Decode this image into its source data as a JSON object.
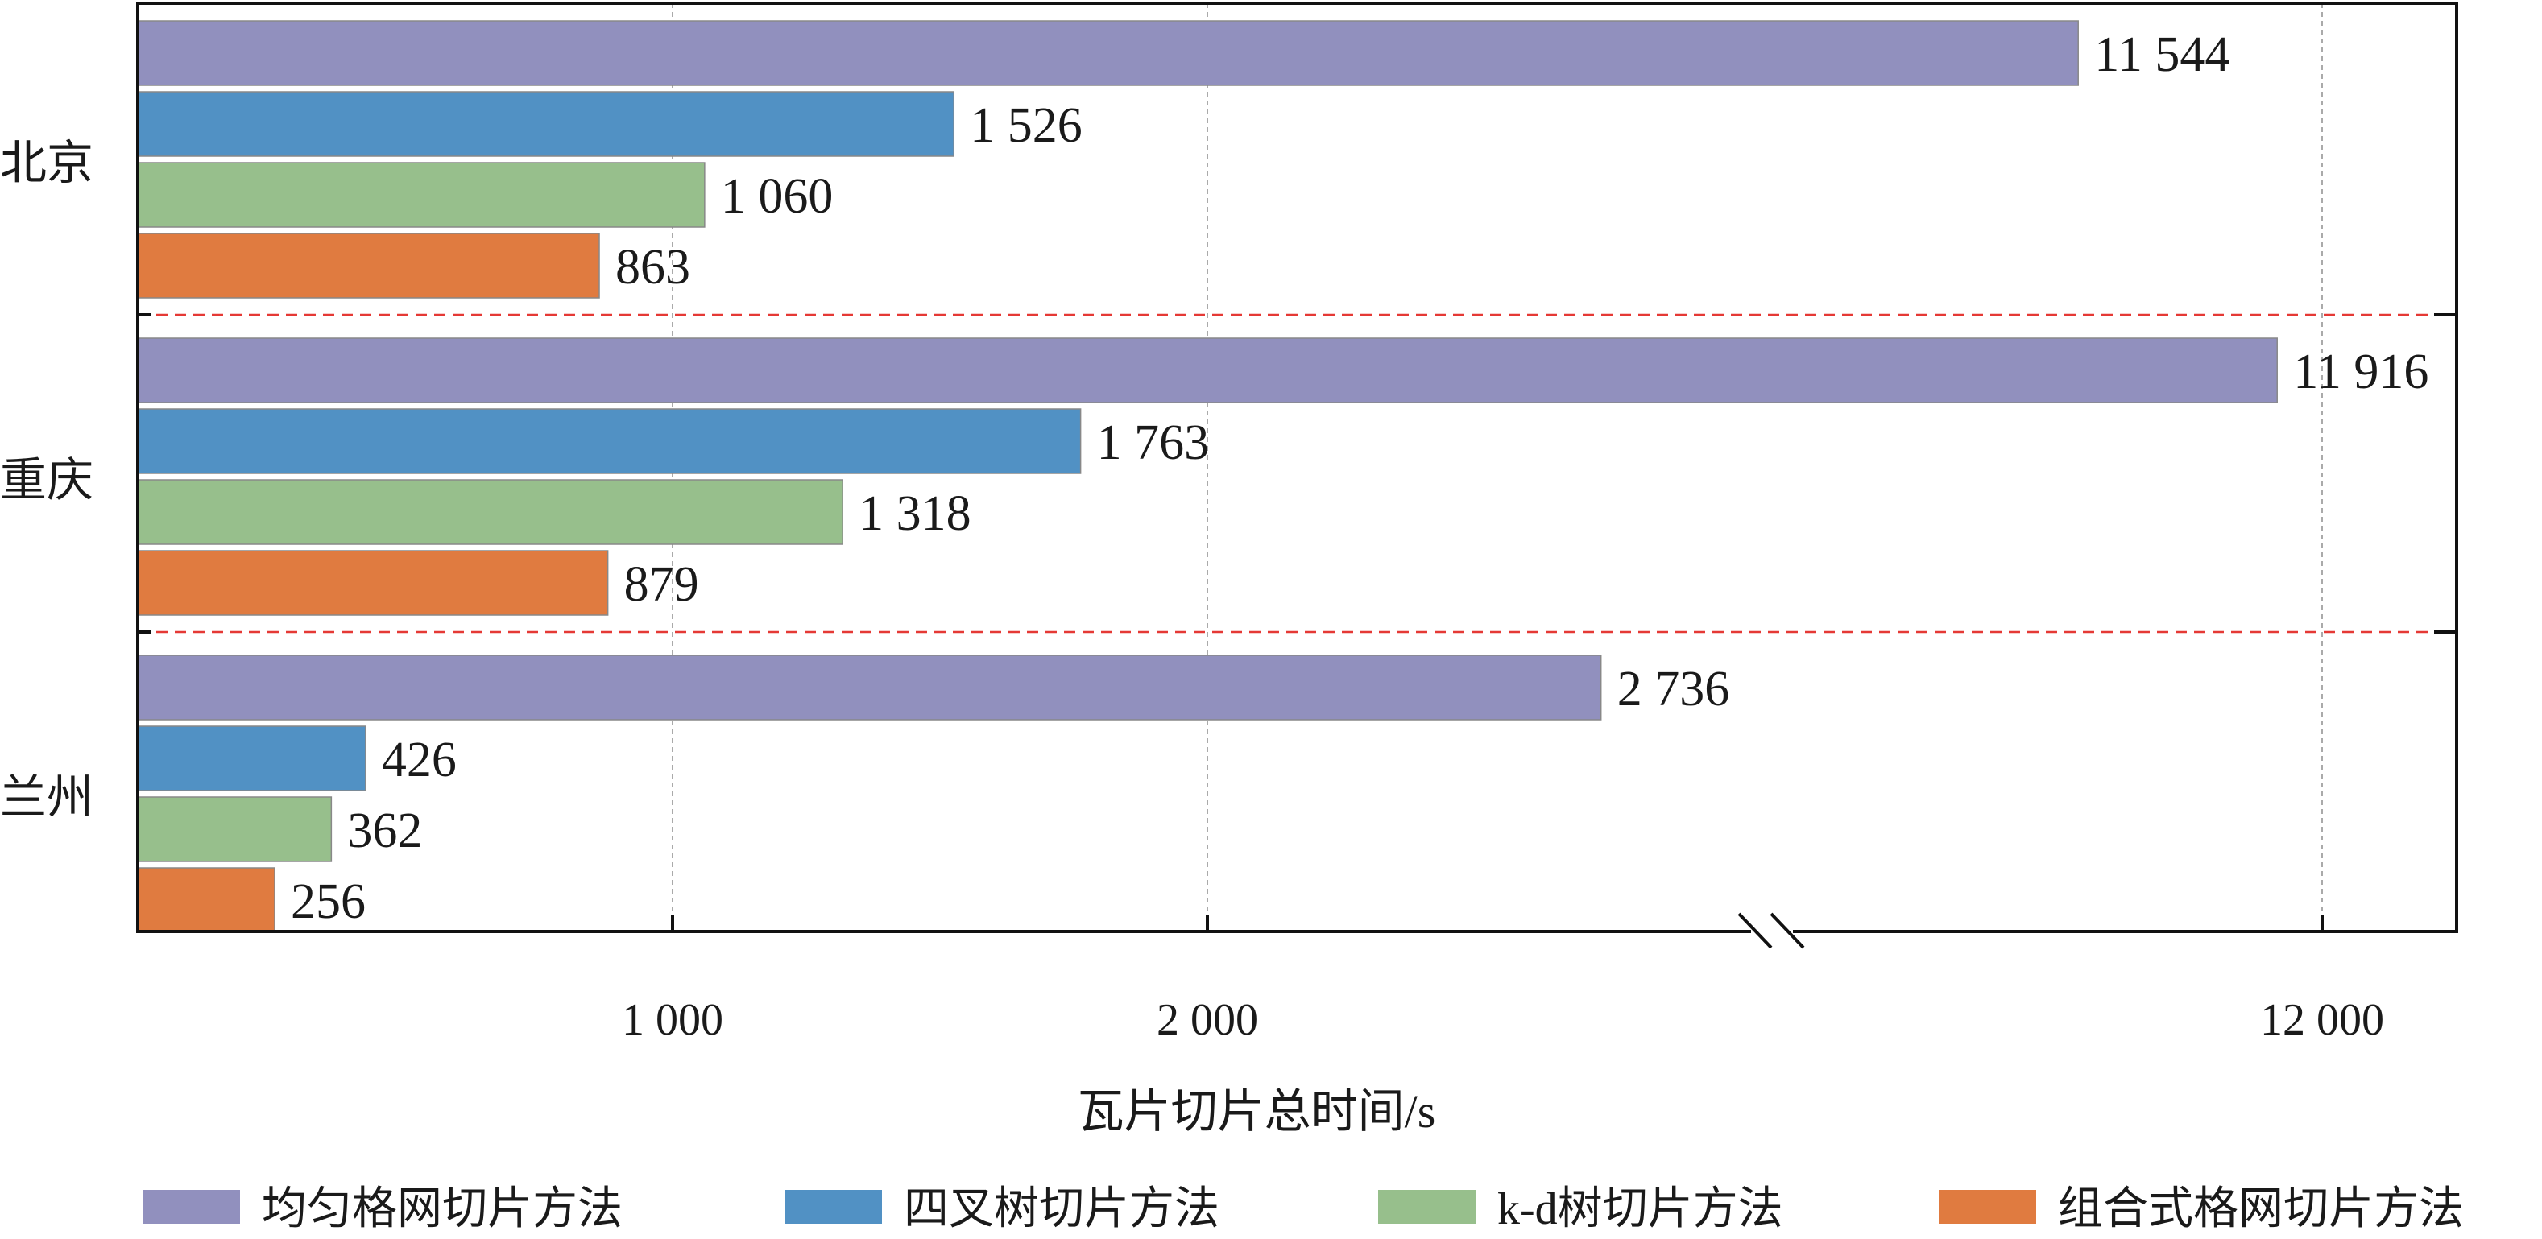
{
  "chart_data": {
    "type": "bar",
    "orientation": "horizontal",
    "title": "",
    "xlabel": "瓦片切片总时间/s",
    "ylabel": "",
    "categories": [
      "北京",
      "重庆",
      "兰州"
    ],
    "series": [
      {
        "name": "均匀格网切片方法",
        "color": "#9190be",
        "values": [
          11544,
          11916,
          2736
        ],
        "labels": [
          "11 544",
          "11 916",
          "2 736"
        ]
      },
      {
        "name": "四叉树切片方法",
        "color": "#5191c4",
        "values": [
          1526,
          1763,
          426
        ],
        "labels": [
          "1 526",
          "1 763",
          "426"
        ]
      },
      {
        "name": "k-d树切片方法",
        "color": "#97bf8c",
        "values": [
          1060,
          1318,
          362
        ],
        "labels": [
          "1 060",
          "1 318",
          "362"
        ]
      },
      {
        "name": "组合式格网切片方法",
        "color": "#e07b40",
        "values": [
          863,
          879,
          256
        ],
        "labels": [
          "863",
          "879",
          "256"
        ]
      }
    ],
    "x_ticks": [
      {
        "value": 1000,
        "label": "1 000"
      },
      {
        "value": 2000,
        "label": "2 000"
      },
      {
        "value": 12000,
        "label": "12 000"
      }
    ],
    "axis_break": {
      "from": 3045,
      "to": 8964
    },
    "xlim": [
      0,
      12250
    ],
    "grid": "vertical dashed at ticks",
    "group_separator_color": "#e53935",
    "legend_position": "bottom"
  }
}
